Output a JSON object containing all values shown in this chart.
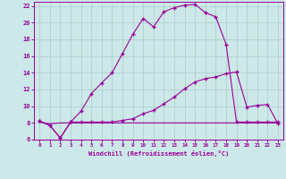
{
  "background_color": "#cce8e8",
  "grid_color": "#aacccc",
  "line_color": "#990099",
  "xlim": [
    -0.5,
    23.5
  ],
  "ylim": [
    6,
    22.5
  ],
  "yticks": [
    6,
    8,
    10,
    12,
    14,
    16,
    18,
    20,
    22
  ],
  "xticks": [
    0,
    1,
    2,
    3,
    4,
    5,
    6,
    7,
    8,
    9,
    10,
    11,
    12,
    13,
    14,
    15,
    16,
    17,
    18,
    19,
    20,
    21,
    22,
    23
  ],
  "line1_x": [
    0,
    1,
    2,
    3,
    4,
    5,
    6,
    7,
    8,
    9,
    10,
    11,
    12,
    13,
    14,
    15,
    16,
    17,
    18,
    19,
    20,
    21,
    22,
    23
  ],
  "line1_y": [
    8.2,
    7.7,
    6.2,
    8.1,
    9.4,
    11.5,
    12.8,
    14.0,
    16.3,
    18.6,
    20.5,
    19.5,
    21.3,
    21.8,
    22.1,
    22.2,
    21.2,
    20.7,
    17.4,
    8.1,
    8.1,
    8.1,
    8.1,
    8.1
  ],
  "line2_x": [
    0,
    1,
    2,
    3,
    4,
    5,
    6,
    7,
    8,
    9,
    10,
    11,
    12,
    13,
    14,
    15,
    16,
    17,
    18,
    19,
    20,
    21,
    22,
    23
  ],
  "line2_y": [
    8.2,
    7.7,
    6.2,
    8.1,
    8.1,
    8.1,
    8.1,
    8.1,
    8.3,
    8.5,
    9.1,
    9.5,
    10.3,
    11.1,
    12.1,
    12.9,
    13.3,
    13.5,
    13.9,
    14.1,
    9.9,
    10.1,
    10.2,
    7.9
  ],
  "line3_x": [
    0,
    1,
    2,
    3,
    4,
    5,
    6,
    7,
    8,
    9,
    10,
    11,
    12,
    13,
    14,
    15,
    16,
    17,
    18,
    19,
    20,
    21,
    22,
    23
  ],
  "line3_y": [
    8.1,
    7.9,
    8.0,
    8.0,
    8.0,
    8.0,
    8.0,
    8.0,
    8.0,
    8.0,
    8.0,
    8.0,
    8.0,
    8.0,
    8.0,
    8.0,
    8.0,
    8.0,
    8.0,
    8.0,
    8.0,
    8.0,
    8.0,
    8.0
  ],
  "xlabel": "Windchill (Refroidissement éolien,°C)",
  "marker": "+"
}
